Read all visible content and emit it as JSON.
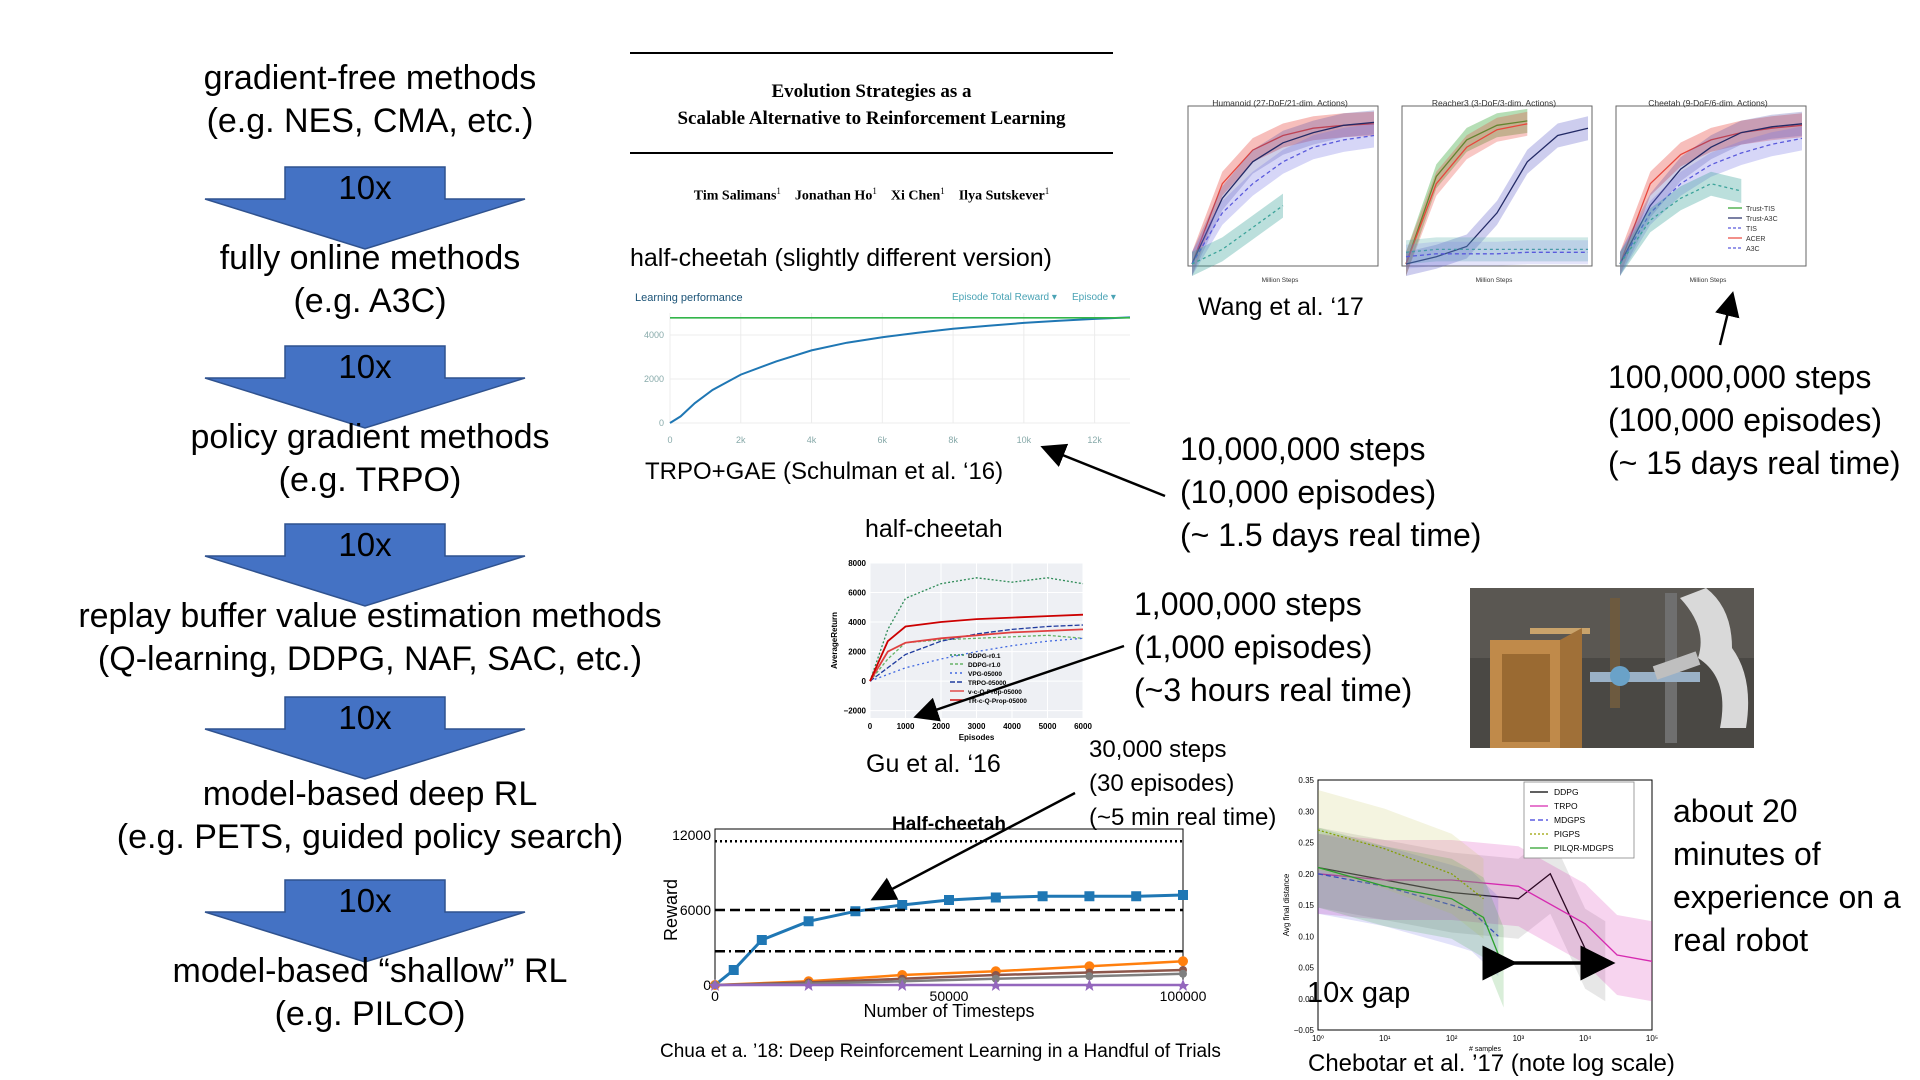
{
  "hierarchy": {
    "items": [
      {
        "title": "gradient-free methods",
        "example": "(e.g. NES, CMA, etc.)"
      },
      {
        "title": "fully online methods",
        "example": "(e.g. A3C)"
      },
      {
        "title": "policy gradient methods",
        "example": "(e.g. TRPO)"
      },
      {
        "title": "replay buffer value estimation methods",
        "example": "(Q-learning, DDPG, NAF, SAC, etc.)"
      },
      {
        "title": "model-based deep RL",
        "example": "(e.g. PETS, guided policy search)"
      },
      {
        "title": "model-based “shallow” RL",
        "example": "(e.g. PILCO)"
      }
    ],
    "arrows": [
      "10x",
      "10x",
      "10x",
      "10x",
      "10x"
    ],
    "arrow_color": "#4472C4"
  },
  "paper": {
    "title_line1": "Evolution Strategies as a",
    "title_line2": "Scalable Alternative to Reinforcement Learning",
    "authors": [
      "Tim Salimans",
      "Jonathan Ho",
      "Xi Chen",
      "Ilya Sutskever"
    ],
    "author_sup": "1"
  },
  "trpo_chart": {
    "heading": "half-cheetah (slightly different version)",
    "panel_title": "Learning performance",
    "dropdown1": "Episode Total Reward",
    "dropdown2": "Episode",
    "caption": "TRPO+GAE (Schulman et al. ‘16)"
  },
  "wang_chart": {
    "panel_titles": [
      "Humanoid (27-DoF/21-dim. Actions)",
      "Reacher3 (3-DoF/3-dim. Actions)",
      "Cheetah (9-DoF/6-dim. Actions)"
    ],
    "xlabel": "Million Steps",
    "legend": [
      "Trust-TIS",
      "Trust-A3C",
      "TIS",
      "ACER",
      "A3C"
    ],
    "caption": "Wang et al. ‘17"
  },
  "gu_chart": {
    "heading": "half-cheetah",
    "xlabel": "Episodes",
    "ylabel": "AverageReturn",
    "legend": [
      "DDPG-r0.1",
      "DDPG-r1.0",
      "VPG-05000",
      "TRPO-05000",
      "v-c-Q-Prop-05000",
      "TR-c-Q-Prop-05000"
    ],
    "caption": "Gu et al. ‘16"
  },
  "chua_chart": {
    "title": "Half-cheetah",
    "xlabel": "Number of Timesteps",
    "ylabel": "Reward",
    "caption": "Chua et a. ’18: Deep Reinforcement Learning in a Handful of Trials"
  },
  "chebotar_chart": {
    "xlabel": "# samples",
    "ylabel": "Avg final distance",
    "legend": [
      "DDPG",
      "TRPO",
      "MDGPS",
      "PIGPS",
      "PILQR-MDGPS"
    ],
    "gap_label": "10x gap",
    "caption": "Chebotar et al. ’17 (note log scale)"
  },
  "annotations": {
    "wang": [
      "100,000,000 steps",
      "(100,000 episodes)",
      "(~ 15 days real time)"
    ],
    "trpo": [
      "10,000,000 steps",
      "(10,000 episodes)",
      "(~ 1.5 days real time)"
    ],
    "gu": [
      "1,000,000 steps",
      "(1,000 episodes)",
      "(~3 hours real time)"
    ],
    "chua": [
      "30,000 steps",
      "(30 episodes)",
      "(~5 min real time)"
    ],
    "robot": [
      "about 20",
      "minutes of",
      "experience on a",
      "real robot"
    ]
  },
  "chart_data": [
    {
      "type": "line",
      "title": "",
      "xlabel": "",
      "ylabel": "",
      "x_ticks": [
        "0",
        "2k",
        "4k",
        "6k",
        "8k",
        "10k",
        "12k"
      ],
      "y_ticks": [
        "0",
        "2000",
        "4000"
      ],
      "xlim": [
        0,
        13000
      ],
      "ylim": [
        0,
        5000
      ],
      "series": [
        {
          "color": "#1f77b4",
          "x": [
            0,
            300,
            700,
            1200,
            2000,
            3000,
            4000,
            5000,
            6000,
            7000,
            8000,
            9000,
            10000,
            11000,
            12000,
            13000
          ],
          "y": [
            0,
            300,
            900,
            1500,
            2200,
            2800,
            3300,
            3650,
            3900,
            4100,
            4280,
            4420,
            4550,
            4650,
            4730,
            4800
          ]
        },
        {
          "color": "#33b54a",
          "x": [
            0,
            13000
          ],
          "y": [
            4780,
            4780
          ]
        }
      ]
    },
    {
      "type": "line",
      "title": "",
      "xlabel": "Episodes",
      "ylabel": "AverageReturn",
      "x_ticks": [
        "0",
        "1000",
        "2000",
        "3000",
        "4000",
        "5000",
        "6000"
      ],
      "y_ticks": [
        "8000",
        "6000",
        "4000",
        "2000",
        "0",
        "−2000"
      ],
      "xlim": [
        0,
        6000
      ],
      "ylim": [
        -2500,
        8000
      ],
      "series": [
        {
          "name": "DDPG-r0.1",
          "color": "#2e8b57",
          "x": [
            0,
            500,
            1000,
            2000,
            3000,
            4000,
            5000,
            6000
          ],
          "y": [
            0,
            3500,
            5600,
            6600,
            7000,
            6700,
            7000,
            6600
          ]
        },
        {
          "name": "DDPG-r1.0",
          "color": "#66b266",
          "x": [
            0,
            500,
            1000,
            2000,
            3000,
            4000,
            5000,
            6000
          ],
          "y": [
            0,
            1500,
            2600,
            2800,
            2900,
            3000,
            3100,
            2900
          ]
        },
        {
          "name": "VPG-05000",
          "color": "#4169e1",
          "x": [
            0,
            1000,
            2000,
            3000,
            4000,
            5000,
            6000
          ],
          "y": [
            0,
            900,
            1500,
            2000,
            2400,
            2700,
            2900
          ]
        },
        {
          "name": "TRPO-05000",
          "color": "#1f3b9e",
          "x": [
            0,
            1000,
            2000,
            3000,
            4000,
            5000,
            6000
          ],
          "y": [
            0,
            1800,
            2700,
            3200,
            3500,
            3700,
            3800
          ]
        },
        {
          "name": "v-c-Q-Prop-05000",
          "color": "#e04040",
          "x": [
            0,
            500,
            1000,
            2000,
            3000,
            4000,
            5000,
            6000
          ],
          "y": [
            0,
            2000,
            2600,
            2900,
            3100,
            3300,
            3400,
            3500
          ]
        },
        {
          "name": "TR-c-Q-Prop-05000",
          "color": "#cc0000",
          "x": [
            0,
            500,
            1000,
            2000,
            3000,
            4000,
            5000,
            6000
          ],
          "y": [
            0,
            2700,
            3700,
            4000,
            4200,
            4300,
            4400,
            4500
          ]
        }
      ]
    },
    {
      "type": "line",
      "title": "Half-cheetah",
      "xlabel": "Number of Timesteps",
      "ylabel": "Reward",
      "x_ticks": [
        "0",
        "50000",
        "100000"
      ],
      "y_ticks": [
        "0",
        "6000",
        "12000"
      ],
      "xlim": [
        0,
        100000
      ],
      "ylim": [
        0,
        12000
      ],
      "series": [
        {
          "color": "#1f77b4",
          "x": [
            0,
            4000,
            10000,
            20000,
            30000,
            40000,
            50000,
            60000,
            70000,
            80000,
            90000,
            100000
          ],
          "y": [
            0,
            1200,
            3600,
            5100,
            5900,
            6400,
            6800,
            7000,
            7100,
            7100,
            7100,
            7200
          ]
        },
        {
          "color": "#ff7f0e",
          "x": [
            0,
            20000,
            40000,
            60000,
            80000,
            100000
          ],
          "y": [
            0,
            300,
            800,
            1100,
            1500,
            1900
          ]
        },
        {
          "color": "#8c564b",
          "x": [
            0,
            20000,
            40000,
            60000,
            80000,
            100000
          ],
          "y": [
            0,
            200,
            500,
            800,
            1000,
            1200
          ]
        },
        {
          "color": "#7f7f7f",
          "x": [
            0,
            20000,
            40000,
            60000,
            80000,
            100000
          ],
          "y": [
            0,
            100,
            300,
            500,
            700,
            900
          ]
        },
        {
          "color": "#9467bd",
          "x": [
            0,
            20000,
            40000,
            60000,
            80000,
            100000
          ],
          "y": [
            0,
            0,
            0,
            0,
            0,
            0
          ]
        },
        {
          "color": "#000000",
          "x": [
            0,
            100000
          ],
          "y": [
            11500,
            11500
          ]
        },
        {
          "color": "#000000",
          "x": [
            0,
            100000
          ],
          "y": [
            6000,
            6000
          ]
        },
        {
          "color": "#000000",
          "x": [
            0,
            100000
          ],
          "y": [
            2700,
            2700
          ]
        }
      ]
    },
    {
      "type": "line",
      "title": "",
      "xlabel": "# samples",
      "ylabel": "Avg final distance",
      "x_scale": "log",
      "x_ticks": [
        "10⁰",
        "10¹",
        "10²",
        "10³",
        "10⁴",
        "10⁵"
      ],
      "y_ticks": [
        "0.35",
        "0.30",
        "0.25",
        "0.20",
        "0.15",
        "0.10",
        "0.05",
        "0.00",
        "−0.05"
      ],
      "xlim": [
        1,
        100000
      ],
      "ylim": [
        -0.05,
        0.35
      ],
      "series": [
        {
          "name": "DDPG",
          "color": "#000000",
          "x": [
            1,
            10,
            100,
            1000,
            3000,
            10000,
            20000
          ],
          "y": [
            0.21,
            0.19,
            0.17,
            0.16,
            0.2,
            0.08,
            0.06
          ]
        },
        {
          "name": "TRPO",
          "color": "#d62ab0",
          "x": [
            1,
            10,
            100,
            1000,
            10000,
            30000,
            100000
          ],
          "y": [
            0.2,
            0.19,
            0.19,
            0.18,
            0.12,
            0.07,
            0.06
          ]
        },
        {
          "name": "MDGPS",
          "color": "#3c3cdc",
          "x": [
            1,
            10,
            100,
            200,
            500
          ],
          "y": [
            0.2,
            0.18,
            0.15,
            0.14,
            0.1
          ]
        },
        {
          "name": "PIGPS",
          "color": "#9aa000",
          "x": [
            1,
            10,
            100,
            300
          ],
          "y": [
            0.27,
            0.24,
            0.2,
            0.16
          ]
        },
        {
          "name": "PILQR-MDGPS",
          "color": "#2ca02c",
          "x": [
            1,
            10,
            100,
            300,
            600
          ],
          "y": [
            0.21,
            0.18,
            0.16,
            0.13,
            0.05
          ]
        }
      ]
    }
  ]
}
